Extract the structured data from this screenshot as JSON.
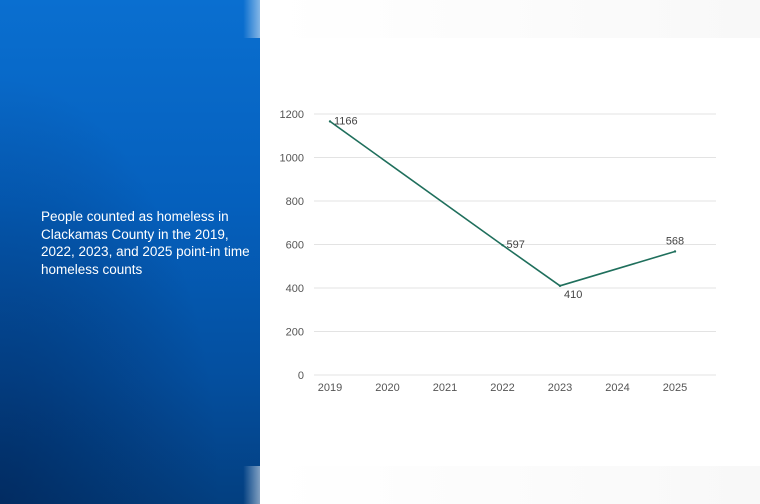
{
  "caption": "People counted as homeless in Clackamas County in the 2019, 2022, 2023, and 2025 point-in time homeless counts",
  "colors": {
    "panel": "#0560bd",
    "line": "#1f6f5c",
    "grid": "#e3e3e3"
  },
  "chart_data": {
    "type": "line",
    "title": "",
    "xlabel": "",
    "ylabel": "",
    "categories": [
      "2019",
      "2020",
      "2021",
      "2022",
      "2023",
      "2024",
      "2025"
    ],
    "y_ticks": [
      "0",
      "200",
      "400",
      "600",
      "800",
      "1000",
      "1200"
    ],
    "ylim": [
      0,
      1200
    ],
    "grid": true,
    "series": [
      {
        "points": [
          {
            "x": "2019",
            "y": 1166,
            "label": "1166"
          },
          {
            "x": "2022",
            "y": 597,
            "label": "597"
          },
          {
            "x": "2023",
            "y": 410,
            "label": "410"
          },
          {
            "x": "2025",
            "y": 568,
            "label": "568"
          }
        ]
      }
    ]
  }
}
